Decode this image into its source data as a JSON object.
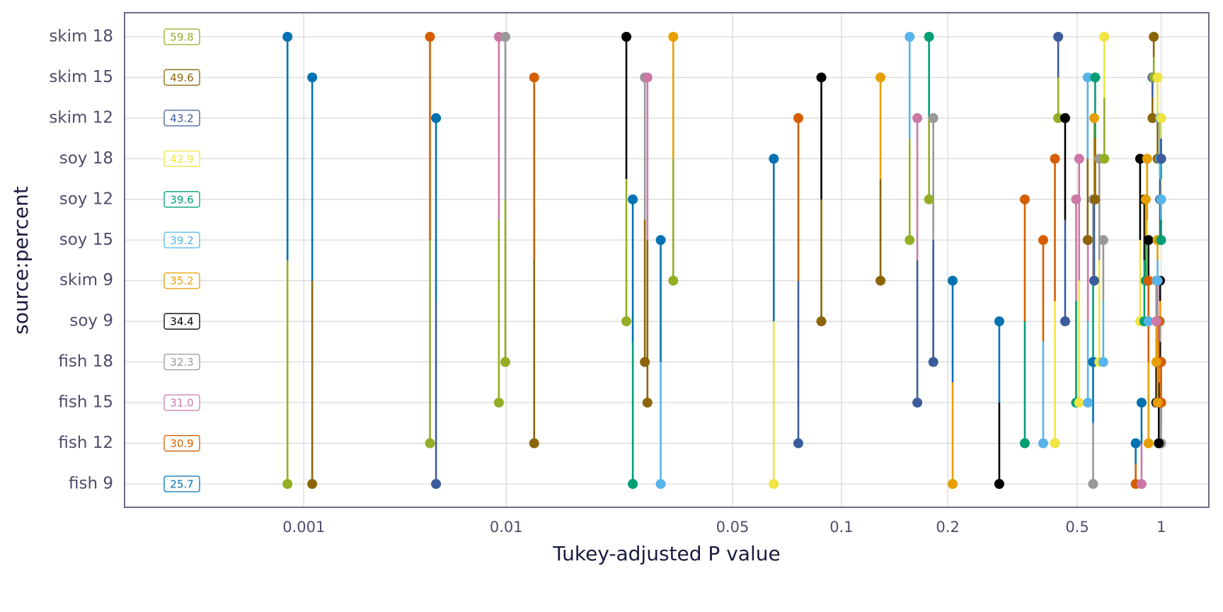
{
  "chart_data": {
    "type": "pairwise-pvalue",
    "x_label": "Tukey-adjusted P value",
    "y_label": "source:percent",
    "categories": [
      "fish 9",
      "fish 12",
      "fish 15",
      "fish 18",
      "soy 9",
      "skim 9",
      "soy 15",
      "soy 12",
      "soy 18",
      "skim 12",
      "skim 15",
      "skim 18"
    ],
    "values": [
      25.7,
      30.9,
      31.0,
      32.3,
      34.4,
      35.2,
      39.2,
      39.6,
      42.9,
      43.2,
      49.6,
      59.8
    ],
    "value_labels": [
      "25.7",
      "30.9",
      "31.0",
      "32.3",
      "34.4",
      "35.2",
      "39.2",
      "39.6",
      "42.9",
      "43.2",
      "49.6",
      "59.8"
    ],
    "colors": [
      "#0072B2",
      "#D55E00",
      "#CC79A7",
      "#999999",
      "#000000",
      "#E69F00",
      "#56B4E9",
      "#009E73",
      "#F0E442",
      "#3A5C9C",
      "#8B6508",
      "#93AE24"
    ],
    "comparisons": [
      {
        "pair": [
          0,
          11
        ],
        "p": 0.00083
      },
      {
        "pair": [
          0,
          10
        ],
        "p": 0.0011
      },
      {
        "pair": [
          1,
          11
        ],
        "p": 0.0042
      },
      {
        "pair": [
          0,
          9
        ],
        "p": 0.0045
      },
      {
        "pair": [
          2,
          11
        ],
        "p": 0.0092
      },
      {
        "pair": [
          3,
          11
        ],
        "p": 0.0099
      },
      {
        "pair": [
          1,
          10
        ],
        "p": 0.0122
      },
      {
        "pair": [
          4,
          11
        ],
        "p": 0.0235
      },
      {
        "pair": [
          0,
          7
        ],
        "p": 0.0246
      },
      {
        "pair": [
          3,
          10
        ],
        "p": 0.0268
      },
      {
        "pair": [
          2,
          10
        ],
        "p": 0.0273
      },
      {
        "pair": [
          0,
          6
        ],
        "p": 0.03
      },
      {
        "pair": [
          5,
          11
        ],
        "p": 0.0328
      },
      {
        "pair": [
          0,
          8
        ],
        "p": 0.065
      },
      {
        "pair": [
          1,
          9
        ],
        "p": 0.076
      },
      {
        "pair": [
          4,
          10
        ],
        "p": 0.088
      },
      {
        "pair": [
          5,
          10
        ],
        "p": 0.129
      },
      {
        "pair": [
          6,
          11
        ],
        "p": 0.156
      },
      {
        "pair": [
          2,
          9
        ],
        "p": 0.164
      },
      {
        "pair": [
          7,
          11
        ],
        "p": 0.177
      },
      {
        "pair": [
          3,
          9
        ],
        "p": 0.182
      },
      {
        "pair": [
          0,
          5
        ],
        "p": 0.207
      },
      {
        "pair": [
          0,
          4
        ],
        "p": 0.288
      },
      {
        "pair": [
          1,
          7
        ],
        "p": 0.345
      },
      {
        "pair": [
          1,
          6
        ],
        "p": 0.393
      },
      {
        "pair": [
          1,
          8
        ],
        "p": 0.427
      },
      {
        "pair": [
          9,
          11
        ],
        "p": 0.437
      },
      {
        "pair": [
          4,
          9
        ],
        "p": 0.459
      },
      {
        "pair": [
          2,
          7
        ],
        "p": 0.496
      },
      {
        "pair": [
          2,
          8
        ],
        "p": 0.508
      },
      {
        "pair": [
          2,
          6
        ],
        "p": 0.546
      },
      {
        "pair": [
          6,
          10
        ],
        "p": 0.545
      },
      {
        "pair": [
          3,
          7
        ],
        "p": 0.57
      },
      {
        "pair": [
          0,
          3
        ],
        "p": 0.57
      },
      {
        "pair": [
          5,
          9
        ],
        "p": 0.575
      },
      {
        "pair": [
          7,
          10
        ],
        "p": 0.58
      },
      {
        "pair": [
          3,
          8
        ],
        "p": 0.6
      },
      {
        "pair": [
          3,
          6
        ],
        "p": 0.62
      },
      {
        "pair": [
          8,
          11
        ],
        "p": 0.625
      },
      {
        "pair": [
          0,
          1
        ],
        "p": 0.81
      },
      {
        "pair": [
          0,
          2
        ],
        "p": 0.85
      },
      {
        "pair": [
          4,
          8
        ],
        "p": 0.84
      },
      {
        "pair": [
          4,
          7
        ],
        "p": 0.87
      },
      {
        "pair": [
          5,
          8
        ],
        "p": 0.89
      },
      {
        "pair": [
          5,
          7
        ],
        "p": 0.88
      },
      {
        "pair": [
          4,
          6
        ],
        "p": 0.9
      },
      {
        "pair": [
          1,
          5
        ],
        "p": 0.9
      },
      {
        "pair": [
          9,
          10
        ],
        "p": 0.93
      },
      {
        "pair": [
          10,
          11
        ],
        "p": 0.94
      },
      {
        "pair": [
          8,
          10
        ],
        "p": 0.97
      },
      {
        "pair": [
          7,
          9
        ],
        "p": 0.99
      },
      {
        "pair": [
          6,
          8
        ],
        "p": 0.99
      },
      {
        "pair": [
          7,
          8
        ],
        "p": 0.999
      },
      {
        "pair": [
          6,
          9
        ],
        "p": 0.99
      },
      {
        "pair": [
          4,
          5
        ],
        "p": 0.99
      },
      {
        "pair": [
          3,
          4
        ],
        "p": 0.99
      },
      {
        "pair": [
          2,
          3
        ],
        "p": 0.999
      },
      {
        "pair": [
          1,
          2
        ],
        "p": 0.999
      },
      {
        "pair": [
          1,
          3
        ],
        "p": 0.998
      },
      {
        "pair": [
          1,
          4
        ],
        "p": 0.98
      },
      {
        "pair": [
          2,
          4
        ],
        "p": 0.96
      },
      {
        "pair": [
          2,
          5
        ],
        "p": 0.97
      },
      {
        "pair": [
          3,
          5
        ],
        "p": 0.96
      },
      {
        "pair": [
          5,
          6
        ],
        "p": 0.97
      },
      {
        "pair": [
          6,
          7
        ],
        "p": 0.999
      },
      {
        "pair": [
          8,
          9
        ],
        "p": 0.999
      }
    ],
    "xlim": [
      0.00013,
      1.48
    ],
    "xticks": [
      0.001,
      0.01,
      0.05,
      0.1,
      0.2,
      0.5,
      1
    ],
    "grid": true
  }
}
